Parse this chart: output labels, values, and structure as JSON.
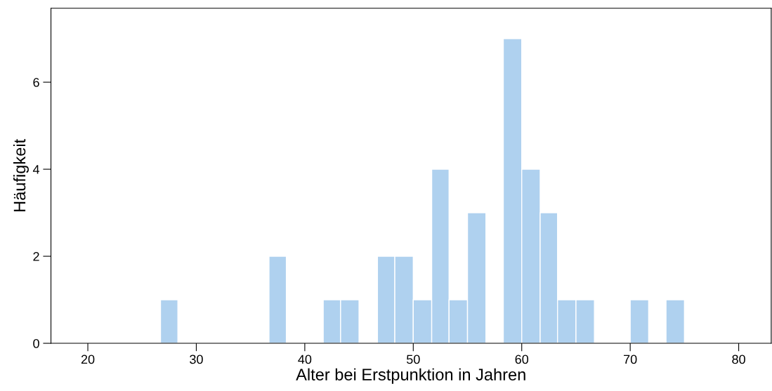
{
  "chart_data": {
    "type": "histogram",
    "xlabel": "Alter bei Erstpunktion in Jahren",
    "ylabel": "Häufigkeit",
    "bins": [
      26.7,
      28.3,
      36.7,
      38.3,
      41.7,
      43.3,
      45.0,
      46.7,
      48.3,
      50.0,
      51.7,
      53.3,
      55.0,
      56.7,
      58.3,
      60.0,
      61.7,
      63.3,
      65.0,
      66.7,
      70.0,
      71.7,
      73.3,
      75.0
    ],
    "values": [
      1,
      0,
      2,
      0,
      1,
      1,
      0,
      2,
      2,
      1,
      4,
      1,
      3,
      0,
      7,
      4,
      3,
      1,
      1,
      0,
      1,
      0,
      1
    ],
    "color": "#afd1ef",
    "xlim": [
      16.6,
      83
    ],
    "ylim": [
      0,
      7.7
    ],
    "xticks": [
      20,
      30,
      40,
      50,
      60,
      70,
      80
    ],
    "yticks": [
      0,
      2,
      4,
      6
    ],
    "grid": false
  }
}
